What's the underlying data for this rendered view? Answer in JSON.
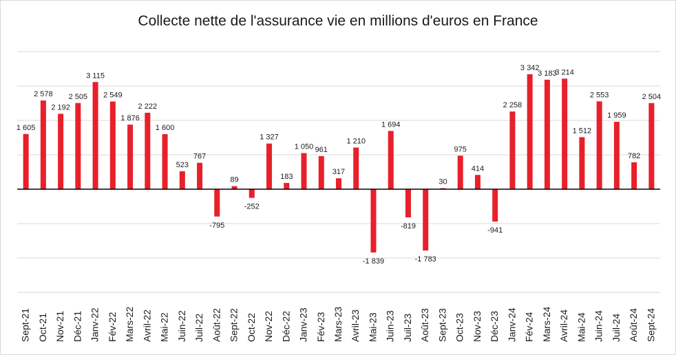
{
  "chart_data": {
    "type": "bar",
    "title": "Collecte nette de l'assurance vie en millions d'euros en France",
    "xlabel": "",
    "ylabel": "",
    "ylim": [
      -3000,
      4000
    ],
    "grid": true,
    "y_tick_labels_shown": false,
    "bar_color": "#e8202a",
    "categories": [
      "Sept-21",
      "Oct-21",
      "Nov-21",
      "Déc-21",
      "Janv-22",
      "Fév-22",
      "Mars-22",
      "Avril-22",
      "Mai-22",
      "Juin-22",
      "Juil-22",
      "Août-22",
      "Sept-22",
      "Oct-22",
      "Nov-22",
      "Déc-22",
      "Janv-23",
      "Fév-23",
      "Mars-23",
      "Avril-23",
      "Mai-23",
      "Juin-23",
      "Juil-23",
      "Août-23",
      "Sept-23",
      "Oct-23",
      "Nov-23",
      "Déc-23",
      "Janv-24",
      "Fév-24",
      "Mars-24",
      "Avril-24",
      "Mai-24",
      "Juin-24",
      "Juil-24",
      "Août-24",
      "Sept-24"
    ],
    "values": [
      1605,
      2578,
      2192,
      2505,
      3115,
      2549,
      1876,
      2222,
      1600,
      523,
      767,
      -795,
      89,
      -252,
      1327,
      183,
      1050,
      961,
      317,
      1210,
      -1839,
      1694,
      -819,
      -1783,
      30,
      975,
      414,
      -941,
      2258,
      3342,
      3183,
      3214,
      1512,
      2553,
      1959,
      782,
      2504
    ],
    "value_labels": [
      "1 605",
      "2 578",
      "2 192",
      "2 505",
      "3 115",
      "2 549",
      "1 876",
      "2 222",
      "1 600",
      "523",
      "767",
      "-795",
      "89",
      "-252",
      "1 327",
      "183",
      "1 050",
      "961",
      "317",
      "1 210",
      "-1 839",
      "1 694",
      "-819",
      "-1 783",
      "30",
      "975",
      "414",
      "-941",
      "2 258",
      "3 342",
      "3 183",
      "3 214",
      "1 512",
      "2 553",
      "1 959",
      "782",
      "2 504"
    ]
  }
}
